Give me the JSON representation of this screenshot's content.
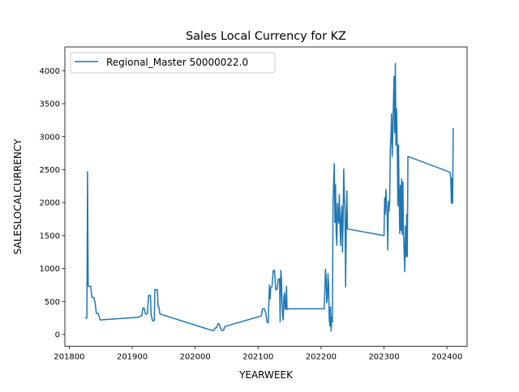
{
  "chart_data": {
    "type": "line",
    "title": "Sales Local Currency for KZ",
    "xlabel": "YEARWEEK",
    "ylabel": "SALESLOCALCURRENCY",
    "xlim": [
      201793,
      202432
    ],
    "ylim": [
      -180,
      4360
    ],
    "xticks": [
      201800,
      201900,
      202000,
      202100,
      202200,
      202300,
      202400
    ],
    "yticks": [
      0,
      500,
      1000,
      1500,
      2000,
      2500,
      3000,
      3500,
      4000
    ],
    "grid": false,
    "legend_position": "top-left",
    "series": [
      {
        "name": "Regional_Master 50000022.0",
        "color": "#1f77b4",
        "points": [
          [
            201826,
            250
          ],
          [
            201828,
            250
          ],
          [
            201829,
            2470
          ],
          [
            201830,
            730
          ],
          [
            201834,
            730
          ],
          [
            201836,
            560
          ],
          [
            201839,
            560
          ],
          [
            201841,
            480
          ],
          [
            201843,
            320
          ],
          [
            201846,
            320
          ],
          [
            201849,
            220
          ],
          [
            201910,
            260
          ],
          [
            201913,
            280
          ],
          [
            201915,
            280
          ],
          [
            201917,
            400
          ],
          [
            201919,
            400
          ],
          [
            201921,
            310
          ],
          [
            201924,
            310
          ],
          [
            201926,
            590
          ],
          [
            201929,
            590
          ],
          [
            201930,
            310
          ],
          [
            201932,
            210
          ],
          [
            201935,
            210
          ],
          [
            201936,
            680
          ],
          [
            201940,
            680
          ],
          [
            201941,
            430
          ],
          [
            201942,
            430
          ],
          [
            201944,
            310
          ],
          [
            202027,
            60
          ],
          [
            202030,
            60
          ],
          [
            202032,
            100
          ],
          [
            202034,
            100
          ],
          [
            202036,
            160
          ],
          [
            202038,
            160
          ],
          [
            202040,
            110
          ],
          [
            202042,
            60
          ],
          [
            202045,
            60
          ],
          [
            202047,
            120
          ],
          [
            202105,
            280
          ],
          [
            202107,
            390
          ],
          [
            202110,
            390
          ],
          [
            202112,
            330
          ],
          [
            202114,
            200
          ],
          [
            202116,
            170
          ],
          [
            202118,
            750
          ],
          [
            202119,
            540
          ],
          [
            202120,
            710
          ],
          [
            202122,
            720
          ],
          [
            202124,
            970
          ],
          [
            202126,
            970
          ],
          [
            202128,
            680
          ],
          [
            202130,
            680
          ],
          [
            202132,
            840
          ],
          [
            202134,
            840
          ],
          [
            202135,
            190
          ],
          [
            202136,
            970
          ],
          [
            202137,
            840
          ],
          [
            202138,
            500
          ],
          [
            202139,
            280
          ],
          [
            202140,
            220
          ],
          [
            202141,
            580
          ],
          [
            202142,
            630
          ],
          [
            202143,
            390
          ],
          [
            202144,
            380
          ],
          [
            202145,
            730
          ],
          [
            202146,
            380
          ],
          [
            202150,
            390
          ],
          [
            202152,
            390
          ],
          [
            202200,
            390
          ],
          [
            202202,
            390
          ],
          [
            202205,
            390
          ],
          [
            202206,
            660
          ],
          [
            202207,
            990
          ],
          [
            202208,
            850
          ],
          [
            202209,
            480
          ],
          [
            202210,
            550
          ],
          [
            202211,
            920
          ],
          [
            202212,
            750
          ],
          [
            202213,
            240
          ],
          [
            202214,
            130
          ],
          [
            202215,
            420
          ],
          [
            202216,
            50
          ],
          [
            202217,
            260
          ],
          [
            202218,
            190
          ],
          [
            202219,
            2000
          ],
          [
            202220,
            2290
          ],
          [
            202221,
            2590
          ],
          [
            202222,
            1700
          ],
          [
            202223,
            2270
          ],
          [
            202224,
            1560
          ],
          [
            202225,
            1350
          ],
          [
            202226,
            1990
          ],
          [
            202227,
            1800
          ],
          [
            202228,
            1690
          ],
          [
            202229,
            2120
          ],
          [
            202230,
            1700
          ],
          [
            202231,
            1350
          ],
          [
            202232,
            1780
          ],
          [
            202233,
            1950
          ],
          [
            202234,
            1250
          ],
          [
            202235,
            1700
          ],
          [
            202236,
            2510
          ],
          [
            202237,
            2100
          ],
          [
            202238,
            1900
          ],
          [
            202239,
            720
          ],
          [
            202240,
            1600
          ],
          [
            202241,
            2180
          ],
          [
            202242,
            1600
          ],
          [
            202300,
            1500
          ],
          [
            202301,
            2070
          ],
          [
            202302,
            1820
          ],
          [
            202303,
            2200
          ],
          [
            202304,
            1980
          ],
          [
            202305,
            1840
          ],
          [
            202306,
            1280
          ],
          [
            202307,
            2020
          ],
          [
            202308,
            1870
          ],
          [
            202309,
            2020
          ],
          [
            202310,
            2800
          ],
          [
            202311,
            2980
          ],
          [
            202312,
            3350
          ],
          [
            202313,
            2700
          ],
          [
            202314,
            3020
          ],
          [
            202315,
            3520
          ],
          [
            202316,
            3910
          ],
          [
            202317,
            3060
          ],
          [
            202318,
            4110
          ],
          [
            202319,
            2870
          ],
          [
            202320,
            3420
          ],
          [
            202321,
            2850
          ],
          [
            202322,
            1950
          ],
          [
            202323,
            2870
          ],
          [
            202324,
            2100
          ],
          [
            202325,
            1530
          ],
          [
            202326,
            2260
          ],
          [
            202327,
            1580
          ],
          [
            202328,
            2360
          ],
          [
            202329,
            1520
          ],
          [
            202330,
            2310
          ],
          [
            202331,
            1490
          ],
          [
            202332,
            1250
          ],
          [
            202333,
            950
          ],
          [
            202334,
            1640
          ],
          [
            202335,
            1180
          ],
          [
            202336,
            1820
          ],
          [
            202337,
            1180
          ],
          [
            202338,
            2700
          ],
          [
            202405,
            2460
          ],
          [
            202406,
            2380
          ],
          [
            202407,
            1990
          ],
          [
            202408,
            2370
          ],
          [
            202409,
            1990
          ],
          [
            202410,
            3120
          ]
        ]
      }
    ]
  }
}
